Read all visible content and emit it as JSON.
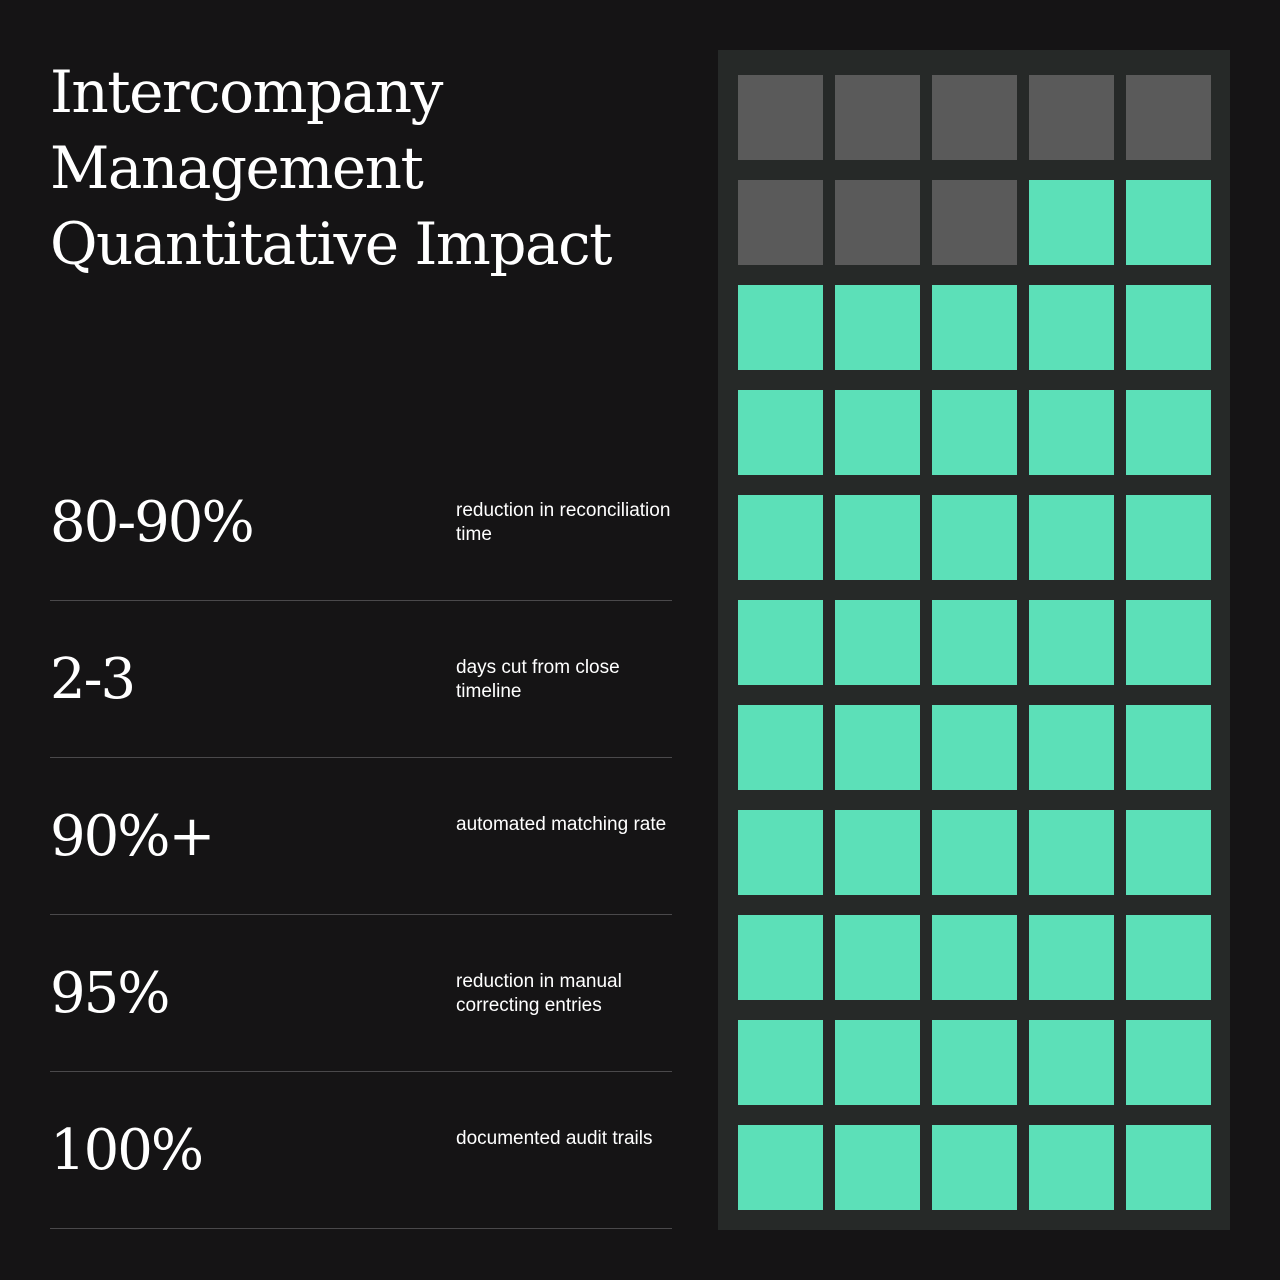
{
  "title": {
    "line1": "Intercompany",
    "line2": "Management",
    "line3": "Quantitative Impact"
  },
  "stats": [
    {
      "value": "80-90%",
      "description": "reduction in reconciliation time"
    },
    {
      "value": "2-3",
      "description": "days cut from close timeline"
    },
    {
      "value": "90%+",
      "description": "automated matching rate"
    },
    {
      "value": "95%",
      "description": "reduction in manual correcting entries"
    },
    {
      "value": "100%",
      "description": "documented audit trails"
    }
  ],
  "grid": {
    "total_cells": 55,
    "highlighted_cells": 47,
    "columns": 5,
    "rows": 11,
    "highlight_color": "#5ce0b8",
    "base_color": "#5a5a5a"
  },
  "colors": {
    "background": "#151415",
    "panel": "#262928",
    "text": "#ffffff",
    "divider": "#4a494b"
  }
}
